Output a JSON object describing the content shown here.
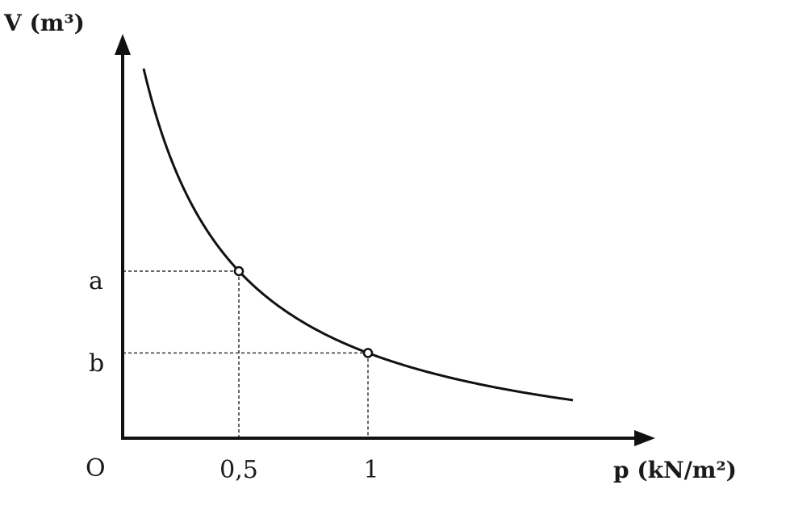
{
  "chart_data": {
    "type": "line",
    "description_relation": "V inversely proportional to p",
    "xlabel": "p (kN/m²)",
    "ylabel": "V (m³)",
    "origin_label": "O",
    "x_ticks": [
      "0,5",
      "1"
    ],
    "y_ticks": [
      "a",
      "b"
    ],
    "points": [
      {
        "x": 0.5,
        "y_label": "a"
      },
      {
        "x": 1,
        "y_label": "b"
      }
    ],
    "grid": false,
    "colors": {
      "curve": "#111111",
      "guides": "#333333"
    }
  }
}
